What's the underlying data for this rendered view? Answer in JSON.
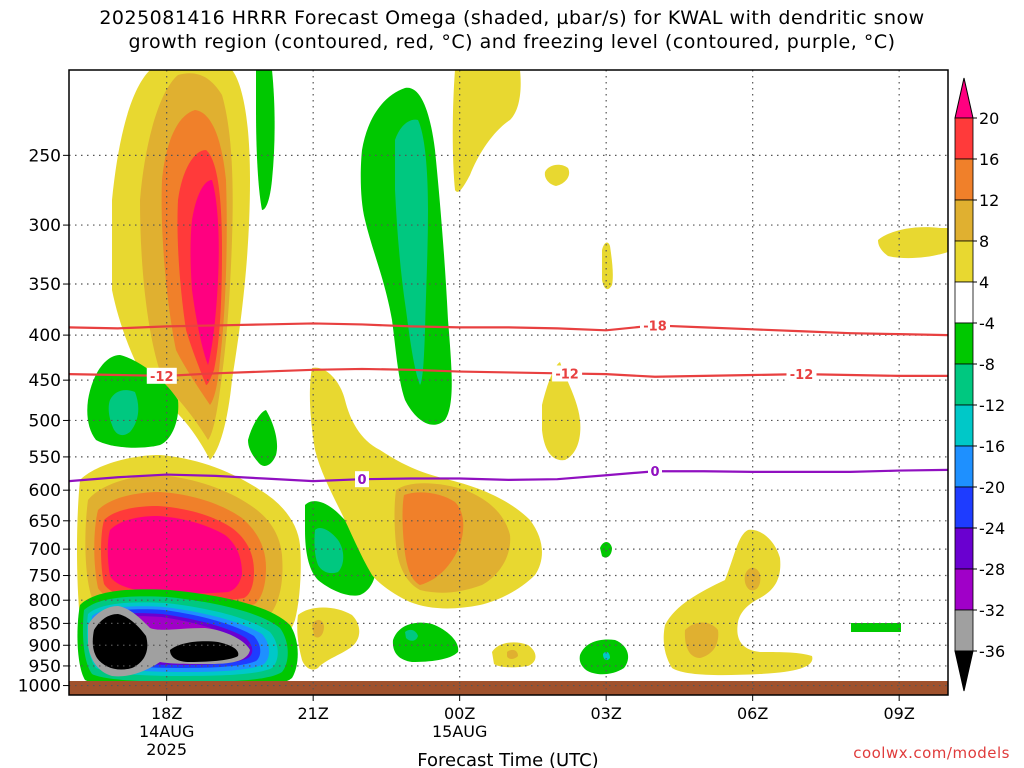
{
  "title_lines": [
    "2025081416 HRRR Forecast Omega (shaded, µbar/s) for KWAL with dendritic snow",
    "growth region (contoured, red, °C) and freezing level (contoured, purple, °C)"
  ],
  "credit": "coolwx.com/models",
  "chart_data": {
    "type": "heatmap",
    "xlabel": "Forecast Time (UTC)",
    "ylabel": "",
    "x_ticks": [
      {
        "label": "18Z",
        "sub": [
          "14AUG",
          "2025"
        ],
        "hour": 0
      },
      {
        "label": "21Z",
        "sub": [],
        "hour": 3
      },
      {
        "label": "00Z",
        "sub": [
          "15AUG"
        ],
        "hour": 6
      },
      {
        "label": "03Z",
        "sub": [],
        "hour": 9
      },
      {
        "label": "06Z",
        "sub": [],
        "hour": 12
      },
      {
        "label": "09Z",
        "sub": [],
        "hour": 15
      }
    ],
    "xlim_hours": [
      -2,
      16
    ],
    "y_ticks": [
      250,
      300,
      350,
      400,
      450,
      500,
      550,
      600,
      650,
      700,
      750,
      800,
      850,
      900,
      950,
      1000
    ],
    "ylim_hpa": [
      200,
      1025
    ],
    "y_scale": "log",
    "grid": true,
    "colorbar": {
      "levels": [
        20,
        16,
        12,
        8,
        4,
        -4,
        -8,
        -12,
        -16,
        -20,
        -24,
        -28,
        -32,
        -36
      ],
      "colors": [
        "#ff0080",
        "#ff3a3a",
        "#f0802a",
        "#e0b030",
        "#e8d830",
        "#ffffff",
        "#00c800",
        "#00c880",
        "#00c8c8",
        "#1e90ff",
        "#1e3cff",
        "#6a00d0",
        "#a000c8",
        "#a0a0a0",
        "#000000"
      ]
    },
    "contours": [
      {
        "name": "-18",
        "color": "#e84040",
        "points": [
          [
            -2,
            392
          ],
          [
            -1,
            393
          ],
          [
            0,
            391
          ],
          [
            1,
            390
          ],
          [
            2,
            389
          ],
          [
            3,
            388
          ],
          [
            4,
            389
          ],
          [
            5,
            391
          ],
          [
            6,
            392
          ],
          [
            7,
            392
          ],
          [
            8,
            393
          ],
          [
            9,
            395
          ],
          [
            10,
            390
          ],
          [
            11,
            392
          ],
          [
            12,
            394
          ],
          [
            13,
            396
          ],
          [
            14,
            398
          ],
          [
            15,
            399
          ],
          [
            16,
            400
          ]
        ],
        "label_hours": [
          10
        ]
      },
      {
        "name": "-12",
        "color": "#e84040",
        "points": [
          [
            -2,
            443
          ],
          [
            -1,
            444
          ],
          [
            0,
            445
          ],
          [
            1,
            442
          ],
          [
            2,
            440
          ],
          [
            3,
            438
          ],
          [
            4,
            437
          ],
          [
            5,
            438
          ],
          [
            6,
            440
          ],
          [
            7,
            441
          ],
          [
            8,
            442
          ],
          [
            9,
            443
          ],
          [
            10,
            446
          ],
          [
            11,
            445
          ],
          [
            12,
            444
          ],
          [
            13,
            443
          ],
          [
            14,
            444
          ],
          [
            15,
            445
          ],
          [
            16,
            445
          ]
        ],
        "label_hours": [
          -0.1,
          8.2,
          13
        ]
      },
      {
        "name": "0",
        "color": "#9010c0",
        "points": [
          [
            -2,
            586
          ],
          [
            -1,
            580
          ],
          [
            0,
            576
          ],
          [
            1,
            578
          ],
          [
            2,
            582
          ],
          [
            3,
            586
          ],
          [
            4,
            583
          ],
          [
            5,
            582
          ],
          [
            6,
            582
          ],
          [
            7,
            584
          ],
          [
            8,
            583
          ],
          [
            9,
            577
          ],
          [
            10,
            571
          ],
          [
            11,
            571
          ],
          [
            12,
            572
          ],
          [
            13,
            572
          ],
          [
            14,
            572
          ],
          [
            15,
            570
          ],
          [
            16,
            569
          ]
        ],
        "label_hours": [
          4,
          10
        ]
      }
    ]
  }
}
